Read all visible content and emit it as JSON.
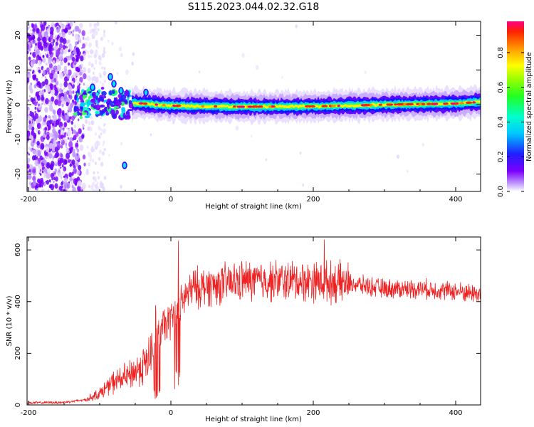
{
  "title": "S115.2023.044.02.32.G18",
  "chart_data": [
    {
      "type": "heatmap",
      "name": "spectrogram",
      "xlabel": "Height of straight line (km)",
      "ylabel": "Frequency (Hz)",
      "xlim": [
        -202,
        435
      ],
      "ylim": [
        -25,
        24
      ],
      "xticks": [
        -200,
        0,
        200,
        400
      ],
      "xtick_labels": [
        "-200",
        "0",
        "200",
        "400"
      ],
      "yticks": [
        -20,
        -10,
        0,
        10,
        20
      ],
      "ytick_labels": [
        "-20",
        "-10",
        "0",
        "10",
        "20"
      ],
      "colorbar": {
        "label": "Normalized spectral amplitude",
        "range": [
          0,
          0.98
        ],
        "ticks": [
          0.0,
          0.2,
          0.4,
          0.6,
          0.8
        ],
        "tick_labels": [
          "0.0",
          "0.2",
          "0.4",
          "0.6",
          "0.8"
        ]
      },
      "ridge": [
        {
          "x": -130,
          "y": 0.0
        },
        {
          "x": -100,
          "y": 1.0
        },
        {
          "x": -60,
          "y": 0.0
        },
        {
          "x": -50,
          "y": 0.5
        },
        {
          "x": 0,
          "y": -0.3
        },
        {
          "x": 100,
          "y": -0.6
        },
        {
          "x": 200,
          "y": -0.5
        },
        {
          "x": 300,
          "y": 0.0
        },
        {
          "x": 400,
          "y": 0.3
        },
        {
          "x": 435,
          "y": 0.8
        }
      ],
      "notable_features": [
        {
          "x": -110,
          "y": 5.0
        },
        {
          "x": -85,
          "y": 8.0
        },
        {
          "x": -80,
          "y": 6.0
        },
        {
          "x": -70,
          "y": 4.0
        },
        {
          "x": -65,
          "y": -17.5
        },
        {
          "x": -35,
          "y": 3.5
        }
      ]
    },
    {
      "type": "line",
      "name": "snr",
      "xlabel": "Height of straight line (km)",
      "ylabel": "SNR (10 * v/v)",
      "xlim": [
        -202,
        435
      ],
      "ylim": [
        0,
        650
      ],
      "xticks": [
        -200,
        0,
        200,
        400
      ],
      "xtick_labels": [
        "-200",
        "0",
        "200",
        "400"
      ],
      "yticks": [
        0,
        200,
        400,
        600
      ],
      "ytick_labels": [
        "0",
        "200",
        "400",
        "600"
      ],
      "color": "#ee2222",
      "series": [
        {
          "name": "SNR",
          "x": [
            -202,
            -150,
            -120,
            -100,
            -80,
            -60,
            -40,
            -30,
            -20,
            -10,
            0,
            10,
            20,
            30,
            50,
            80,
            100,
            150,
            200,
            250,
            300,
            350,
            400,
            435
          ],
          "y": [
            8,
            10,
            20,
            45,
            90,
            110,
            150,
            180,
            270,
            300,
            330,
            360,
            420,
            450,
            460,
            470,
            480,
            480,
            480,
            470,
            450,
            450,
            440,
            430
          ]
        }
      ],
      "annotations": [
        {
          "x": 10,
          "y": 635,
          "text": ""
        },
        {
          "x": 215,
          "y": 640,
          "text": ""
        }
      ]
    }
  ]
}
